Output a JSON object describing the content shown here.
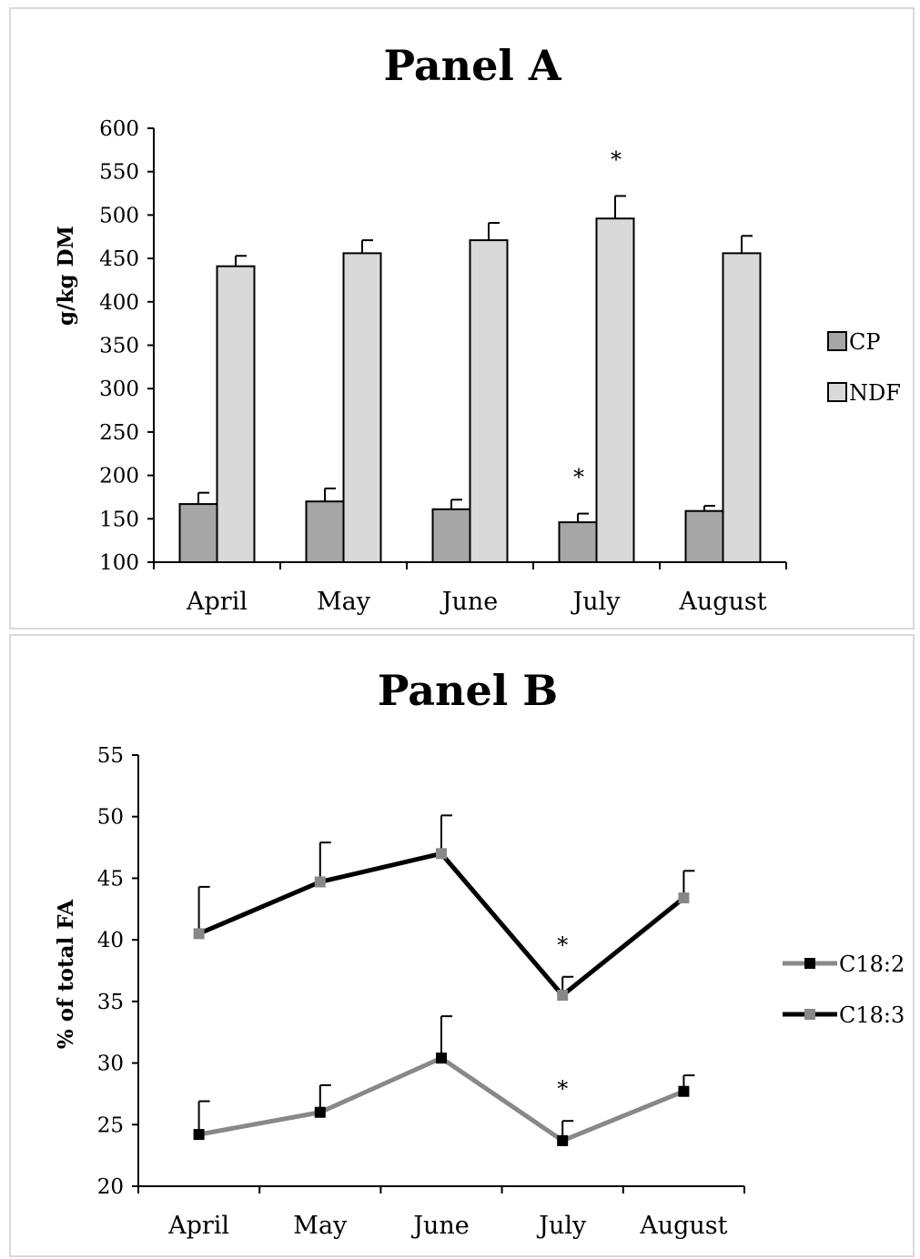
{
  "colors": {
    "cp": "#a6a6a6",
    "ndf": "#d9d9d9",
    "c182": "#888888",
    "c183": "#000000",
    "c182_marker": "#000000",
    "c183_marker": "#888888",
    "axis": "#000000"
  },
  "chart_data": [
    {
      "type": "bar",
      "title": "Panel A",
      "ylabel": "g/kg DM",
      "xlabel": "",
      "categories": [
        "April",
        "May",
        "June",
        "July",
        "August"
      ],
      "ylim": [
        100,
        600
      ],
      "yticks": [
        100,
        150,
        200,
        250,
        300,
        350,
        400,
        450,
        500,
        550,
        600
      ],
      "legend_position": "right",
      "series": [
        {
          "name": "CP",
          "values": [
            167,
            170,
            161,
            146,
            159
          ],
          "errors": [
            13,
            15,
            11,
            10,
            6
          ]
        },
        {
          "name": "NDF",
          "values": [
            441,
            456,
            471,
            496,
            456
          ],
          "errors": [
            12,
            15,
            20,
            26,
            20
          ]
        }
      ],
      "annotations": [
        {
          "text": "*",
          "category": "July",
          "series": "CP"
        },
        {
          "text": "*",
          "category": "July",
          "series": "NDF"
        }
      ],
      "grid": false
    },
    {
      "type": "line",
      "title": "Panel B",
      "ylabel": "% of total FA",
      "xlabel": "",
      "categories": [
        "April",
        "May",
        "June",
        "July",
        "August"
      ],
      "ylim": [
        20,
        55
      ],
      "yticks": [
        20,
        25,
        30,
        35,
        40,
        45,
        50,
        55
      ],
      "legend_position": "right",
      "series": [
        {
          "name": "C18:2",
          "values": [
            24.2,
            26.0,
            30.4,
            23.7,
            27.7
          ],
          "errors": [
            2.7,
            2.2,
            3.4,
            1.6,
            1.3
          ]
        },
        {
          "name": "C18:3",
          "values": [
            40.5,
            44.7,
            47.0,
            35.5,
            43.4
          ],
          "errors": [
            3.8,
            3.2,
            3.1,
            1.5,
            2.2
          ]
        }
      ],
      "annotations": [
        {
          "text": "*",
          "category": "July",
          "series": "C18:2"
        },
        {
          "text": "*",
          "category": "July",
          "series": "C18:3"
        }
      ],
      "grid": false
    }
  ]
}
